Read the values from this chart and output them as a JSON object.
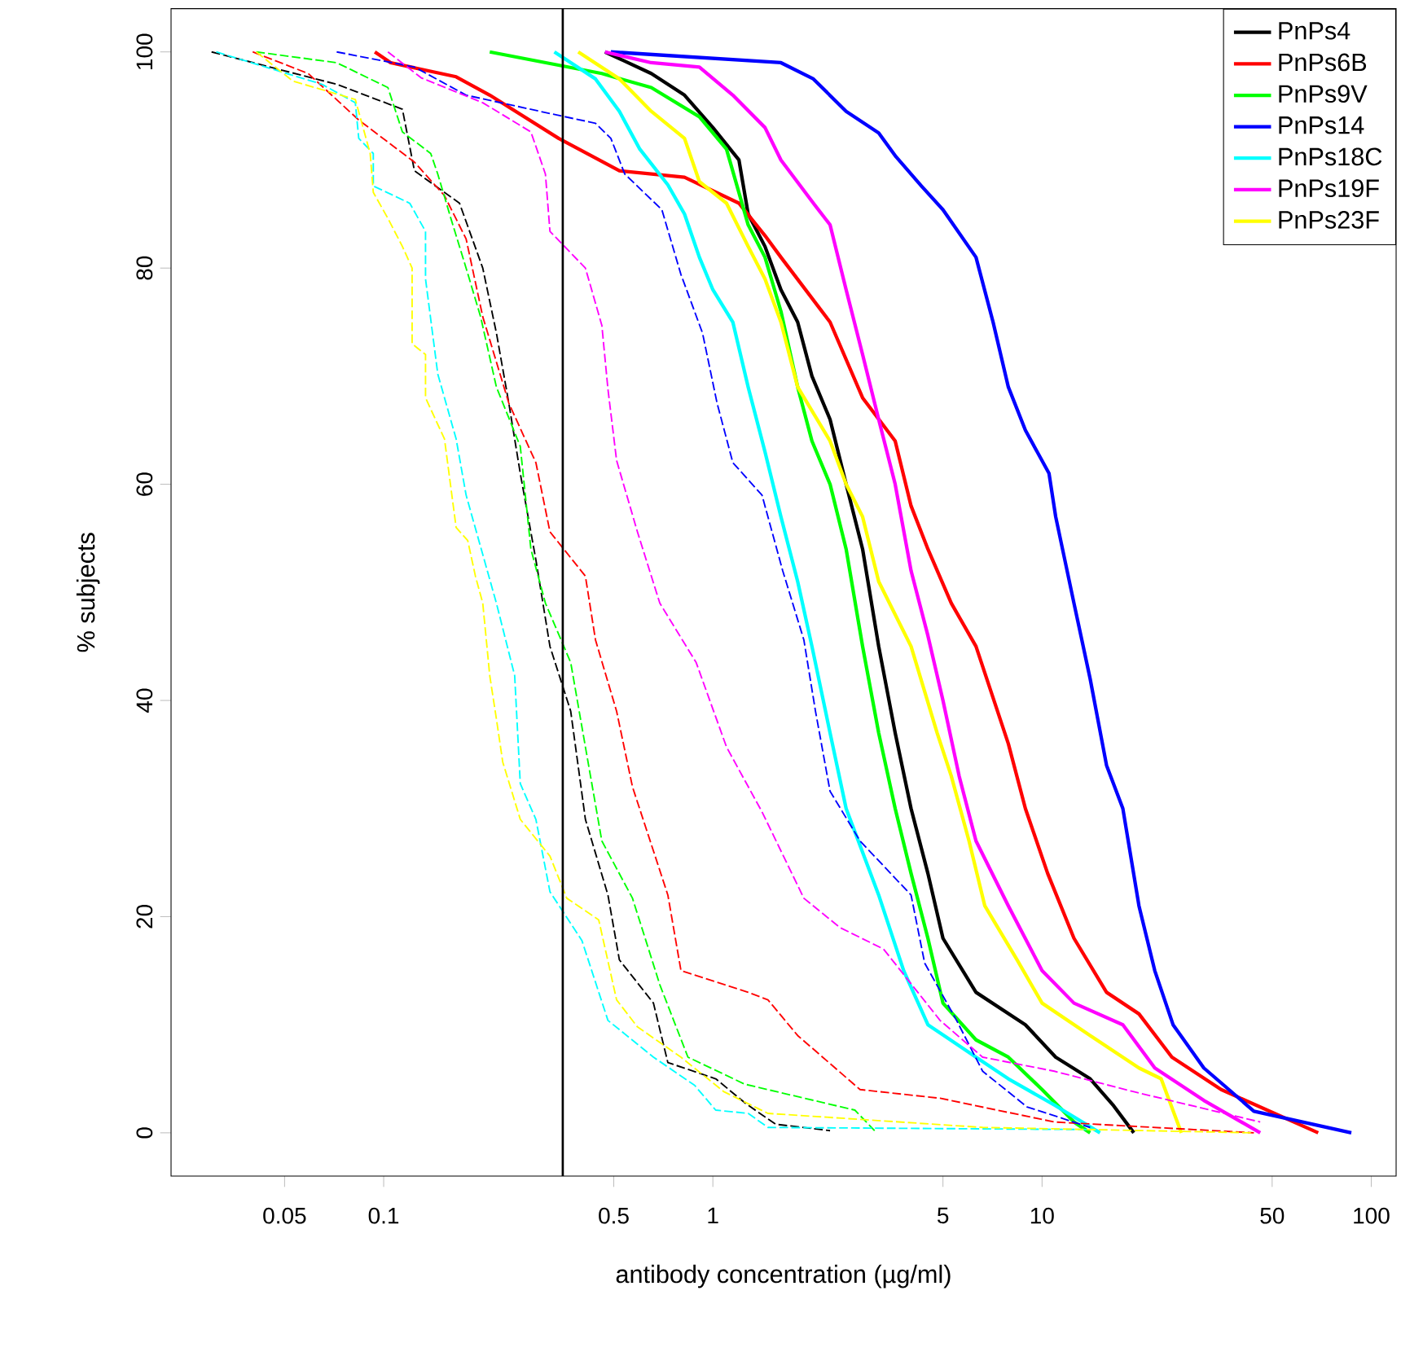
{
  "chart_data": {
    "type": "line",
    "xlabel": "antibody concentration (µg/ml)",
    "ylabel": "% subjects",
    "log": "x",
    "xlim": [
      0.0226,
      119
    ],
    "ylim": [
      -4,
      104
    ],
    "xticks": [
      0.05,
      0.1,
      0.5,
      1,
      5,
      10,
      50,
      100
    ],
    "yticks": [
      0,
      20,
      40,
      60,
      80,
      100
    ],
    "grid": false,
    "legend": "top right",
    "marker": "none",
    "ref_lines": [
      {
        "axis": "x",
        "value": 0.35,
        "color": "#000000"
      }
    ],
    "series": [
      {
        "name": "PnPs4",
        "color": "#000000",
        "line_style": "solid",
        "x": [
          0.47,
          0.65,
          0.82,
          1.0,
          1.2,
          1.28,
          1.44,
          1.61,
          1.81,
          2.0,
          2.27,
          2.54,
          2.85,
          3.19,
          3.58,
          4.0,
          4.5,
          5.0,
          6.3,
          8.9,
          11,
          14,
          16.5,
          19
        ],
        "values": [
          100,
          98,
          96,
          93,
          90,
          85,
          82,
          78,
          75,
          70,
          66,
          60,
          54,
          45,
          37,
          30,
          24,
          18,
          13,
          10,
          7,
          5,
          2.5,
          0
        ]
      },
      {
        "name": "PnPs6B",
        "color": "#ff0000",
        "line_style": "solid",
        "x": [
          0.094,
          0.105,
          0.166,
          0.21,
          0.34,
          0.52,
          0.82,
          1.2,
          1.44,
          1.61,
          2.27,
          2.85,
          3.58,
          4.0,
          4.5,
          5.3,
          6.3,
          7.9,
          8.9,
          10.4,
          12.5,
          15.7,
          19.7,
          24.8,
          35,
          69
        ],
        "values": [
          100,
          99,
          97.7,
          96,
          92,
          89,
          88.4,
          86,
          83,
          81,
          75,
          68,
          64,
          58,
          54,
          49,
          45,
          36,
          30,
          24,
          18,
          13,
          11,
          7,
          4,
          0
        ]
      },
      {
        "name": "PnPs9V",
        "color": "#00ff00",
        "line_style": "solid",
        "x": [
          0.21,
          0.46,
          0.65,
          0.91,
          1.1,
          1.28,
          1.44,
          1.61,
          1.81,
          2.0,
          2.27,
          2.54,
          2.85,
          3.19,
          3.58,
          4.0,
          4.5,
          5.0,
          6.3,
          7.9,
          10,
          12.5,
          14
        ],
        "values": [
          100,
          98,
          96.7,
          94,
          91,
          84,
          81,
          76,
          69,
          64,
          60,
          54,
          45,
          37,
          30,
          24,
          18,
          12,
          8.6,
          7,
          4,
          1,
          0
        ]
      },
      {
        "name": "PnPs14",
        "color": "#0000ff",
        "line_style": "solid",
        "x": [
          0.49,
          1.61,
          2.02,
          2.54,
          3.19,
          3.6,
          4.3,
          5.0,
          6.3,
          7.1,
          7.9,
          8.9,
          10.5,
          11,
          12.5,
          14,
          15.7,
          17.6,
          19.7,
          22,
          25,
          31,
          44,
          87
        ],
        "values": [
          100,
          99,
          97.5,
          94.5,
          92.5,
          90.3,
          87.6,
          85.4,
          81,
          75,
          69,
          65,
          61,
          57,
          49,
          42,
          34,
          30,
          21,
          15,
          10,
          6,
          2,
          0
        ]
      },
      {
        "name": "PnPs18C",
        "color": "#00ffff",
        "line_style": "solid",
        "x": [
          0.33,
          0.44,
          0.52,
          0.6,
          0.73,
          0.82,
          0.91,
          1.0,
          1.15,
          1.28,
          1.44,
          1.61,
          1.81,
          2.0,
          2.27,
          2.54,
          3.19,
          3.8,
          4.5,
          6.3,
          7.9,
          11,
          15
        ],
        "values": [
          100,
          97.5,
          94.5,
          91,
          87.7,
          85,
          81,
          78,
          75,
          69,
          63,
          57,
          51,
          45,
          37,
          30,
          22,
          15,
          10,
          7,
          5,
          2.5,
          0
        ]
      },
      {
        "name": "PnPs19F",
        "color": "#ff00ff",
        "line_style": "solid",
        "x": [
          0.47,
          0.65,
          0.91,
          1.15,
          1.44,
          1.61,
          2.02,
          2.27,
          2.54,
          2.85,
          3.19,
          3.58,
          4.0,
          4.5,
          5.0,
          5.6,
          6.3,
          7.9,
          10,
          12.5,
          17.6,
          22,
          31,
          46
        ],
        "values": [
          100,
          99,
          98.6,
          96,
          93,
          90,
          86,
          84,
          78,
          72,
          66,
          60,
          52,
          46,
          40,
          33,
          27,
          21,
          15,
          12,
          10,
          6,
          3,
          0
        ]
      },
      {
        "name": "PnPs23F",
        "color": "#ffff00",
        "line_style": "solid",
        "x": [
          0.39,
          0.52,
          0.65,
          0.82,
          0.91,
          1.1,
          1.28,
          1.44,
          1.61,
          1.81,
          2.27,
          2.54,
          2.85,
          3.19,
          4.0,
          4.8,
          5.3,
          6.0,
          6.7,
          8.4,
          10,
          14,
          19.7,
          23,
          26.5
        ],
        "values": [
          100,
          97.5,
          94.5,
          92,
          88,
          86,
          82,
          79,
          75,
          69,
          64,
          60,
          57,
          51,
          45,
          37,
          33,
          27,
          21,
          16,
          12,
          9,
          6,
          5,
          0
        ]
      },
      {
        "color": "#000000",
        "line_style": "dashed",
        "x": [
          0.03,
          0.072,
          0.114,
          0.124,
          0.17,
          0.2,
          0.22,
          0.24,
          0.26,
          0.29,
          0.32,
          0.37,
          0.41,
          0.48,
          0.52,
          0.66,
          0.73,
          1.02,
          1.26,
          1.55,
          2.27
        ],
        "values": [
          100,
          97,
          94.7,
          89,
          86,
          80,
          74,
          67.5,
          61,
          53,
          45,
          39,
          29,
          22,
          16,
          12,
          6.5,
          5,
          2.7,
          0.8,
          0.2
        ]
      },
      {
        "color": "#ff0000",
        "line_style": "dashed",
        "x": [
          0.04,
          0.059,
          0.084,
          0.124,
          0.153,
          0.178,
          0.2,
          0.24,
          0.29,
          0.32,
          0.41,
          0.44,
          0.51,
          0.57,
          0.73,
          0.8,
          1.28,
          1.47,
          1.81,
          2.8,
          4.9,
          10.9,
          44
        ],
        "values": [
          100,
          98,
          93.7,
          89.8,
          86.7,
          82.7,
          75.5,
          67.5,
          62,
          55.6,
          51.5,
          45.6,
          39,
          32,
          22,
          15,
          13,
          12.3,
          9,
          4,
          3.2,
          1,
          0
        ]
      },
      {
        "color": "#00ff00",
        "line_style": "dashed",
        "x": [
          0.041,
          0.072,
          0.103,
          0.114,
          0.139,
          0.146,
          0.16,
          0.178,
          0.197,
          0.22,
          0.26,
          0.28,
          0.31,
          0.37,
          0.41,
          0.46,
          0.57,
          0.69,
          0.84,
          1.25,
          2.7,
          3.1
        ],
        "values": [
          100,
          99,
          96.7,
          92.6,
          90.6,
          88.7,
          84.6,
          80,
          75.5,
          69,
          63.5,
          54,
          49,
          43.5,
          35.7,
          27,
          21.7,
          13.7,
          7,
          4.5,
          2.1,
          0.2
        ]
      },
      {
        "color": "#0000ff",
        "line_style": "dashed",
        "x": [
          0.072,
          0.124,
          0.178,
          0.32,
          0.44,
          0.49,
          0.54,
          0.7,
          0.8,
          0.93,
          1.03,
          1.15,
          1.41,
          1.63,
          1.89,
          2.05,
          2.27,
          2.8,
          4.0,
          4.4,
          5.5,
          6.6,
          9.0,
          14
        ],
        "values": [
          100,
          98.6,
          96,
          94.3,
          93.4,
          92,
          88.7,
          85.4,
          79.4,
          74,
          67.5,
          62,
          59,
          52,
          45.6,
          39,
          31.6,
          27,
          22,
          15.7,
          10.4,
          5.7,
          2.4,
          0.5
        ]
      },
      {
        "color": "#00ffff",
        "line_style": "dashed",
        "x": [
          0.031,
          0.065,
          0.082,
          0.084,
          0.093,
          0.093,
          0.12,
          0.134,
          0.134,
          0.146,
          0.166,
          0.178,
          0.2,
          0.22,
          0.25,
          0.26,
          0.29,
          0.32,
          0.4,
          0.48,
          0.66,
          0.88,
          1.02,
          1.28,
          1.47,
          14
        ],
        "values": [
          100,
          97,
          95.3,
          92,
          90.6,
          87.6,
          86,
          83.4,
          79,
          70.2,
          64.2,
          59,
          53.5,
          49,
          42.3,
          32.3,
          29,
          22.3,
          17.8,
          10.4,
          7,
          4.4,
          2.1,
          1.8,
          0.5,
          0.3
        ]
      },
      {
        "color": "#ff00ff",
        "line_style": "dashed",
        "x": [
          0.103,
          0.13,
          0.2,
          0.28,
          0.31,
          0.32,
          0.41,
          0.46,
          0.48,
          0.51,
          0.59,
          0.69,
          0.89,
          1.1,
          1.41,
          1.89,
          2.43,
          3.3,
          4.9,
          6.6,
          10.9,
          19,
          46
        ],
        "values": [
          100,
          97.6,
          95.3,
          92.6,
          88.7,
          83.4,
          80,
          74.7,
          68.8,
          62.2,
          55.6,
          49,
          43.5,
          35.7,
          29.7,
          21.7,
          19,
          17,
          10.4,
          7,
          5.7,
          3.8,
          1
        ]
      },
      {
        "color": "#ffff00",
        "line_style": "dashed",
        "x": [
          0.041,
          0.053,
          0.082,
          0.091,
          0.093,
          0.103,
          0.114,
          0.122,
          0.122,
          0.134,
          0.134,
          0.153,
          0.166,
          0.18,
          0.19,
          0.2,
          0.21,
          0.22,
          0.23,
          0.26,
          0.32,
          0.36,
          0.45,
          0.51,
          0.59,
          0.8,
          1.08,
          1.47,
          6.6,
          44
        ],
        "values": [
          100,
          97.3,
          95.6,
          90.6,
          87,
          84.6,
          82,
          80,
          73,
          72,
          68,
          64.2,
          56,
          54.8,
          51.5,
          49,
          42.3,
          38.3,
          34.3,
          29,
          25.6,
          21.7,
          19.7,
          12.3,
          9.8,
          7,
          3.8,
          1.8,
          0.5,
          0
        ]
      }
    ]
  }
}
